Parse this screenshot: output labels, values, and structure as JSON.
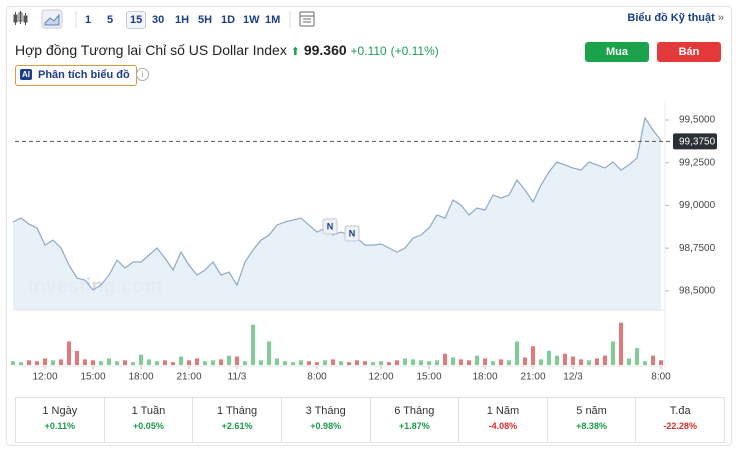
{
  "toolbar": {
    "intervals": [
      "1",
      "5",
      "15",
      "30",
      "1H",
      "5H",
      "1D",
      "1W",
      "1M"
    ],
    "selected": 2,
    "link": "Biểu đồ Kỹ thuật",
    "link_arrow": "»"
  },
  "header": {
    "title": "Hợp đồng Tương lai Chỉ số US Dollar Index",
    "price": "99.360",
    "change": "+0.110",
    "change_pct": "(+0.11%)",
    "buy": "Mua",
    "sell": "Bán",
    "ai_badge": "AI",
    "ai_label": "Phân tích biểu đồ"
  },
  "chart_data": {
    "type": "area",
    "watermark": "Investing.com",
    "annotations": [
      "N",
      "N"
    ],
    "categories": [
      null,
      null,
      null,
      null,
      "12:00",
      null,
      null,
      null,
      null,
      null,
      "15:00",
      null,
      null,
      null,
      null,
      null,
      "18:00",
      null,
      null,
      null,
      null,
      null,
      "21:00",
      null,
      null,
      null,
      null,
      null,
      "11/3",
      null,
      null,
      null,
      null,
      null,
      null,
      null,
      null,
      null,
      "8:00",
      null,
      null,
      null,
      null,
      null,
      null,
      null,
      "12:00",
      null,
      null,
      null,
      null,
      null,
      "15:00",
      null,
      null,
      null,
      null,
      null,
      null,
      "18:00",
      null,
      null,
      null,
      null,
      null,
      "21:00",
      null,
      null,
      null,
      null,
      "12/3",
      null,
      null,
      null,
      null,
      null,
      null,
      null,
      null,
      null,
      null,
      "8:00"
    ],
    "values": [
      98.903,
      98.926,
      98.891,
      98.868,
      98.768,
      98.797,
      98.751,
      98.651,
      98.575,
      98.563,
      98.505,
      98.534,
      98.592,
      98.68,
      98.633,
      98.669,
      98.669,
      98.71,
      98.751,
      98.692,
      98.622,
      98.727,
      98.651,
      98.592,
      98.622,
      98.669,
      98.592,
      98.61,
      98.534,
      98.669,
      98.739,
      98.797,
      98.827,
      98.885,
      98.903,
      98.915,
      98.926,
      98.885,
      98.844,
      98.868,
      98.827,
      98.844,
      98.827,
      98.809,
      98.768,
      98.768,
      98.774,
      98.751,
      98.727,
      98.751,
      98.809,
      98.827,
      98.868,
      98.944,
      98.926,
      99.032,
      99.002,
      98.944,
      98.985,
      98.973,
      99.061,
      99.043,
      99.061,
      99.149,
      99.09,
      99.02,
      99.119,
      99.196,
      99.254,
      99.237,
      99.219,
      99.207,
      99.254,
      99.237,
      99.219,
      99.254,
      99.207,
      99.237,
      99.278,
      99.512,
      99.441,
      99.38
    ],
    "color": "#8ea9c9",
    "fill": "#e4edf7",
    "ylim": [
      98.388,
      99.617
    ],
    "yticks": [
      {
        "value": 98.5,
        "label": "98,5000"
      },
      {
        "value": 98.75,
        "label": "98,7500"
      },
      {
        "value": 99.0,
        "label": "99,0000"
      },
      {
        "value": 99.25,
        "label": "99,2500"
      },
      {
        "value": 99.5,
        "label": "99,5000"
      }
    ],
    "current": {
      "value": 99.375,
      "label": "99,3750"
    },
    "volume": {
      "values": [
        8,
        6,
        10,
        8,
        14,
        10,
        12,
        50,
        30,
        12,
        10,
        8,
        14,
        8,
        10,
        6,
        22,
        12,
        8,
        10,
        6,
        18,
        10,
        14,
        8,
        10,
        12,
        20,
        18,
        8,
        86,
        10,
        50,
        14,
        8,
        6,
        10,
        8,
        6,
        10,
        12,
        8,
        6,
        10,
        8,
        6,
        8,
        6,
        10,
        14,
        12,
        10,
        8,
        10,
        24,
        16,
        12,
        10,
        20,
        14,
        8,
        12,
        10,
        50,
        16,
        40,
        12,
        30,
        20,
        24,
        18,
        12,
        10,
        14,
        20,
        50,
        90,
        14,
        36,
        8,
        20,
        10
      ],
      "ylim": [
        0,
        100
      ],
      "up_color": "#7fcc97",
      "down_color": "#e07a7a"
    }
  },
  "performance": [
    {
      "period": "1 Ngày",
      "change": "+0.11%"
    },
    {
      "period": "1 Tuần",
      "change": "+0.05%"
    },
    {
      "period": "1 Tháng",
      "change": "+2.61%"
    },
    {
      "period": "3 Tháng",
      "change": "+0.98%"
    },
    {
      "period": "6 Tháng",
      "change": "+1.87%"
    },
    {
      "period": "1 Năm",
      "change": "-4.08%"
    },
    {
      "period": "5 năm",
      "change": "+8.38%"
    },
    {
      "period": "T.đa",
      "change": "-22.28%"
    }
  ]
}
